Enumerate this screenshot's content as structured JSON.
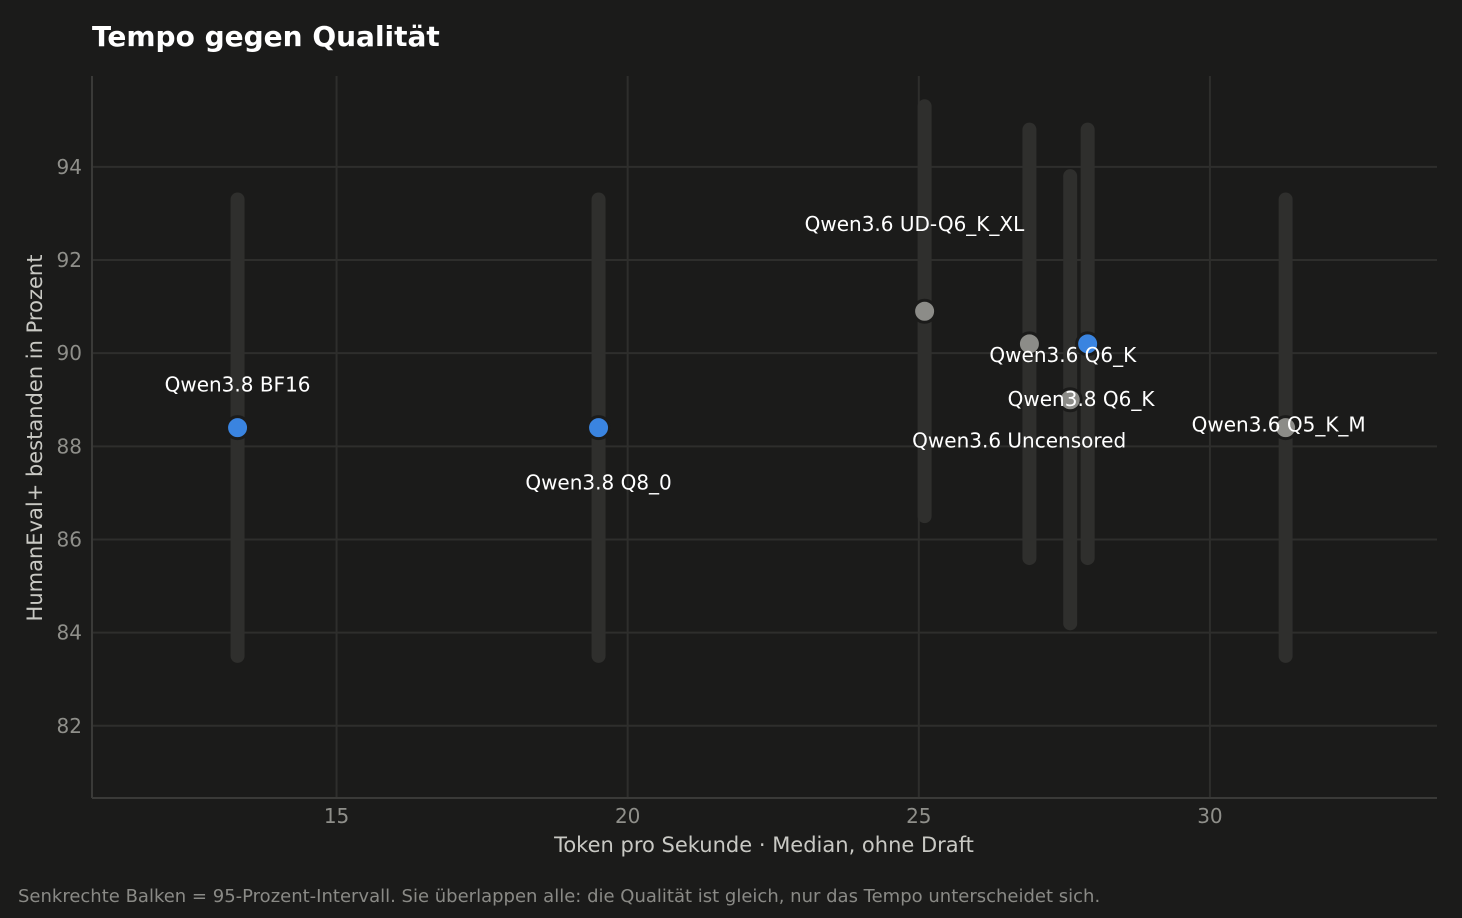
{
  "colors": {
    "background": "#1b1b1a",
    "grid": "#2e2e2c",
    "axis": "#3a3a38",
    "interval_bar": "#2f2f2d",
    "highlight": "#3a84e0",
    "neutral": "#8c8c88",
    "text": "#ffffff",
    "muted_text": "#8f8f8a"
  },
  "chart_data": {
    "type": "scatter",
    "title": "Tempo gegen Qualität",
    "xlabel": "Token pro Sekunde  ·  Median, ohne Draft",
    "ylabel": "HumanEval+ bestanden in Prozent",
    "xlim": [
      10.8,
      33.9
    ],
    "ylim": [
      80.45,
      95.95
    ],
    "xticks": [
      15,
      20,
      25,
      30
    ],
    "yticks": [
      82,
      84,
      86,
      88,
      90,
      92,
      94
    ],
    "grid": true,
    "points": [
      {
        "label": "Qwen3.8  BF16",
        "x": 13.3,
        "y": 88.4,
        "ci": [
          83.5,
          93.3
        ],
        "group": "Qwen3.8"
      },
      {
        "label": "Qwen3.8  Q8_0",
        "x": 19.5,
        "y": 88.4,
        "ci": [
          83.5,
          93.3
        ],
        "group": "Qwen3.8"
      },
      {
        "label": "Qwen3.6  UD-Q6_K_XL",
        "x": 25.1,
        "y": 90.9,
        "ci": [
          86.5,
          95.3
        ],
        "group": "Qwen3.6"
      },
      {
        "label": "Qwen3.6  Q6_K",
        "x": 26.9,
        "y": 90.2,
        "ci": [
          85.6,
          94.8
        ],
        "group": "Qwen3.6"
      },
      {
        "label": "Qwen3.6  Uncensored",
        "x": 27.6,
        "y": 89.0,
        "ci": [
          84.2,
          93.8
        ],
        "group": "Qwen3.6"
      },
      {
        "label": "Qwen3.8  Q6_K",
        "x": 27.9,
        "y": 90.2,
        "ci": [
          85.6,
          94.8
        ],
        "group": "Qwen3.8"
      },
      {
        "label": "Qwen3.6  Q5_K_M",
        "x": 31.3,
        "y": 88.4,
        "ci": [
          83.5,
          93.3
        ],
        "group": "Qwen3.6"
      }
    ]
  },
  "footnote": "Senkrechte Balken = 95-Prozent-Intervall. Sie überlappen alle: die Qualität ist gleich, nur das Tempo unterscheidet sich."
}
